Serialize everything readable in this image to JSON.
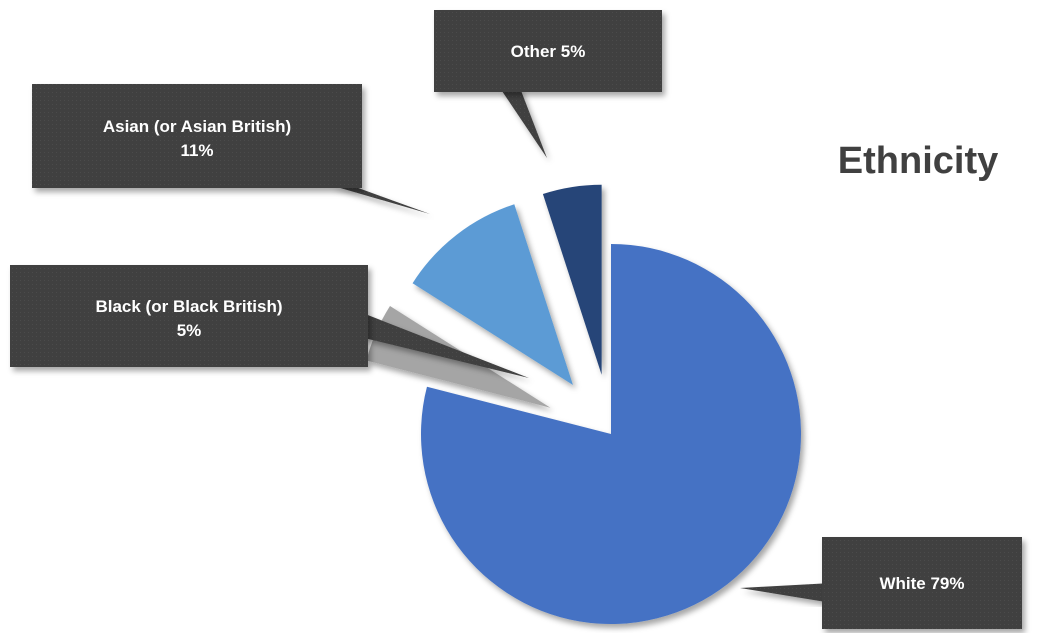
{
  "chart_data": {
    "type": "pie",
    "title": "Ethnicity",
    "slices": [
      {
        "label": "White",
        "value": 79,
        "value_label": "79%",
        "color": "#4472C4"
      },
      {
        "label": "Black (or Black British)",
        "value": 5,
        "value_label": "5%",
        "color": "#A5A5A5"
      },
      {
        "label": "Asian (or Asian British)",
        "value": 11,
        "value_label": "11%",
        "color": "#5B9BD5"
      },
      {
        "label": "Other",
        "value": 5,
        "value_label": "5%",
        "color": "#264478"
      }
    ],
    "exploded": true,
    "data_labels": "callouts",
    "callout_color": "#404040"
  }
}
